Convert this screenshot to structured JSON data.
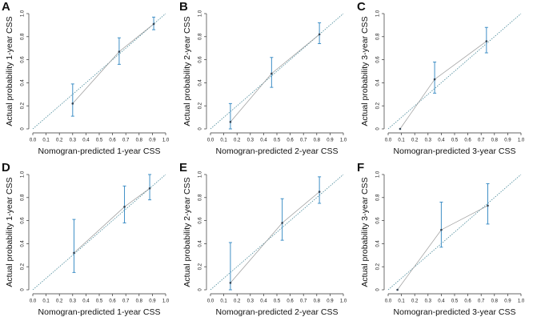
{
  "chart_data": [
    {
      "type": "line",
      "panel": "A",
      "xlabel": "Nomogran-predicted 1-year CSS",
      "ylabel": "Actual probability 1-year CSS",
      "x": [
        0.3,
        0.65,
        0.91
      ],
      "values": [
        0.22,
        0.67,
        0.91
      ],
      "lower": [
        0.11,
        0.56,
        0.86
      ],
      "upper": [
        0.39,
        0.79,
        0.97
      ],
      "color": "#3f8fc6",
      "xlim": [
        0,
        1
      ],
      "ylim": [
        0,
        1
      ],
      "xticks": [
        {
          "value": 0,
          "label": "0.0"
        },
        0.1,
        0.2,
        0.3,
        0.4,
        0.5,
        0.6,
        0.7,
        0.8,
        0.9,
        {
          "value": 1,
          "label": "1.0"
        }
      ],
      "yticks": [
        0,
        0.2,
        0.4,
        0.6,
        0.8,
        {
          "value": 1,
          "label": "1.0"
        }
      ]
    },
    {
      "type": "line",
      "panel": "B",
      "xlabel": "Nomogran-predicted 2-year CSS",
      "ylabel": "Actual probability 2-year CSS",
      "x": [
        0.15,
        0.46,
        0.82
      ],
      "values": [
        0.06,
        0.48,
        0.82
      ],
      "lower": [
        0.0,
        0.36,
        0.74
      ],
      "upper": [
        0.22,
        0.62,
        0.92
      ],
      "color": "#3f8fc6",
      "xlim": [
        0,
        1
      ],
      "ylim": [
        0,
        1
      ],
      "xticks": [
        {
          "value": 0,
          "label": "0.0"
        },
        0.1,
        0.2,
        0.3,
        0.4,
        0.5,
        0.6,
        0.7,
        0.8,
        0.9,
        {
          "value": 1,
          "label": "1.0"
        }
      ],
      "yticks": [
        0,
        0.2,
        0.4,
        0.6,
        0.8,
        {
          "value": 1,
          "label": "1.0"
        }
      ]
    },
    {
      "type": "line",
      "panel": "C",
      "xlabel": "Nomogran-predicted 3-year CSS",
      "ylabel": "Actual probability 3-year CSS",
      "x": [
        0.09,
        0.35,
        0.74
      ],
      "values": [
        0.0,
        0.43,
        0.76
      ],
      "lower": [
        null,
        0.31,
        0.66
      ],
      "upper": [
        null,
        0.58,
        0.88
      ],
      "color": "#3f8fc6",
      "xlim": [
        0,
        1
      ],
      "ylim": [
        0,
        1
      ],
      "xticks": [
        {
          "value": 0,
          "label": "0.0"
        },
        0.1,
        0.2,
        0.3,
        0.4,
        0.5,
        0.6,
        0.7,
        0.8,
        0.9,
        {
          "value": 1,
          "label": "1.0"
        }
      ],
      "yticks": [
        0,
        0.2,
        0.4,
        0.6,
        0.8,
        {
          "value": 1,
          "label": "1.0"
        }
      ]
    },
    {
      "type": "line",
      "panel": "D",
      "xlabel": "Nomogran-predicted 1-year CSS",
      "ylabel": "Actual probability 1-year CSS",
      "x": [
        0.31,
        0.69,
        0.88
      ],
      "values": [
        0.32,
        0.72,
        0.88
      ],
      "lower": [
        0.15,
        0.58,
        0.78
      ],
      "upper": [
        0.61,
        0.9,
        1.0
      ],
      "color": "#3f8fc6",
      "xlim": [
        0,
        1
      ],
      "ylim": [
        0,
        1
      ],
      "xticks": [
        {
          "value": 0,
          "label": "0.0"
        },
        0.1,
        0.2,
        0.3,
        0.4,
        0.5,
        0.6,
        0.7,
        0.8,
        0.9,
        {
          "value": 1,
          "label": "1.0"
        }
      ],
      "yticks": [
        0,
        0.2,
        0.4,
        0.6,
        0.8,
        {
          "value": 1,
          "label": "1.0"
        }
      ]
    },
    {
      "type": "line",
      "panel": "E",
      "xlabel": "Nomogran-predicted 2-year CSS",
      "ylabel": "Actual probability 2-year CSS",
      "x": [
        0.15,
        0.54,
        0.82
      ],
      "values": [
        0.06,
        0.58,
        0.85
      ],
      "lower": [
        0.0,
        0.43,
        0.75
      ],
      "upper": [
        0.41,
        0.79,
        0.98
      ],
      "color": "#3f8fc6",
      "xlim": [
        0,
        1
      ],
      "ylim": [
        0,
        1
      ],
      "xticks": [
        {
          "value": 0,
          "label": "0.0"
        },
        0.1,
        0.2,
        0.3,
        0.4,
        0.5,
        0.6,
        0.7,
        0.8,
        0.9,
        {
          "value": 1,
          "label": "1.0"
        }
      ],
      "yticks": [
        0,
        0.2,
        0.4,
        0.6,
        0.8,
        {
          "value": 1,
          "label": "1.0"
        }
      ]
    },
    {
      "type": "line",
      "panel": "F",
      "xlabel": "Nomogran-predicted 3-year CSS",
      "ylabel": "Actual probability 3-year CSS",
      "x": [
        0.07,
        0.4,
        0.75
      ],
      "values": [
        0.0,
        0.52,
        0.73
      ],
      "lower": [
        null,
        0.37,
        0.57
      ],
      "upper": [
        null,
        0.76,
        0.92
      ],
      "color": "#3f8fc6",
      "xlim": [
        0,
        1
      ],
      "ylim": [
        0,
        1
      ],
      "xticks": [
        {
          "value": 0,
          "label": "0.0"
        },
        0.1,
        0.2,
        0.3,
        0.4,
        0.5,
        0.6,
        0.7,
        0.8,
        0.9,
        {
          "value": 1,
          "label": "1.0"
        }
      ],
      "yticks": [
        0,
        0.2,
        0.4,
        0.6,
        0.8,
        {
          "value": 1,
          "label": "1.0"
        }
      ]
    }
  ]
}
